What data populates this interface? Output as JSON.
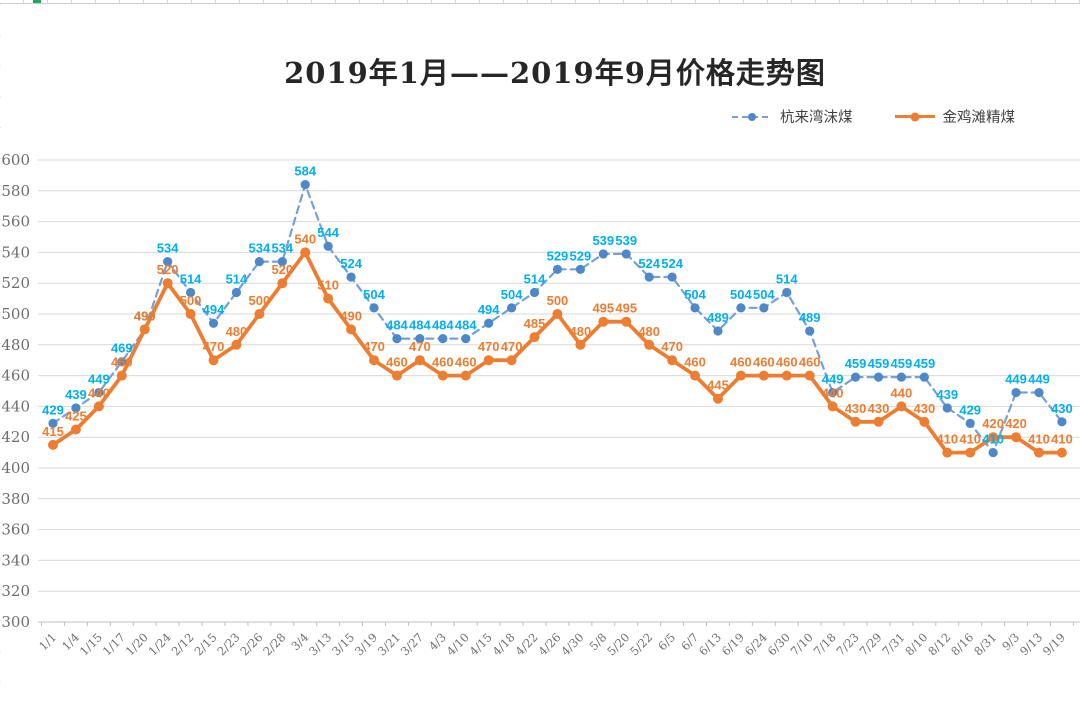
{
  "chart_data": {
    "type": "line",
    "title": "2019年1月——2019年9月价格走势图",
    "legend_position": "top-right",
    "grid": true,
    "data_labels": true,
    "categories": [
      "1/1",
      "1/4",
      "1/15",
      "1/17",
      "1/20",
      "1/24",
      "2/12",
      "2/15",
      "2/23",
      "2/26",
      "2/28",
      "3/4",
      "3/13",
      "3/15",
      "3/19",
      "3/21",
      "3/27",
      "4/3",
      "4/10",
      "4/15",
      "4/18",
      "4/22",
      "4/26",
      "4/30",
      "5/8",
      "5/20",
      "5/22",
      "6/5",
      "6/7",
      "6/13",
      "6/19",
      "6/24",
      "6/30",
      "7/10",
      "7/18",
      "7/23",
      "7/29",
      "7/31",
      "8/10",
      "8/12",
      "8/16",
      "8/31",
      "9/3",
      "9/13",
      "9/19"
    ],
    "series": [
      {
        "name": "杭来湾沫煤",
        "line_style": "dashed",
        "line_color": "#74A1D8",
        "marker_color": "#4E88C8",
        "label_color": "#00B0F0",
        "values": [
          429,
          439,
          449,
          469,
          490,
          534,
          514,
          494,
          514,
          534,
          534,
          584,
          544,
          524,
          504,
          484,
          484,
          484,
          484,
          494,
          504,
          514,
          529,
          529,
          539,
          539,
          524,
          524,
          504,
          489,
          504,
          504,
          514,
          489,
          449,
          459,
          459,
          459,
          459,
          439,
          429,
          410,
          449,
          449,
          430
        ]
      },
      {
        "name": "金鸡滩精煤",
        "line_style": "solid",
        "line_color": "#ED7D31",
        "marker_color": "#ED7D31",
        "label_color": "#ED7D31",
        "values": [
          415,
          425,
          440,
          460,
          490,
          520,
          500,
          470,
          480,
          500,
          520,
          540,
          510,
          490,
          470,
          460,
          470,
          460,
          460,
          470,
          470,
          485,
          500,
          480,
          495,
          495,
          480,
          470,
          460,
          445,
          460,
          460,
          460,
          460,
          440,
          430,
          430,
          440,
          430,
          410,
          410,
          420,
          420,
          410,
          410
        ]
      }
    ],
    "y_axis": {
      "min": 300,
      "max": 600,
      "step": 20,
      "ticks": [
        600,
        580,
        560,
        540,
        520,
        500,
        480,
        460,
        440,
        420,
        400,
        380,
        360,
        340,
        320,
        300
      ]
    },
    "colors": {
      "gridline": "#d9d9d9",
      "axis": "#bfbfbf",
      "tick_text": "#6e6e6e",
      "title_text": "#262626",
      "legend_text": "#404040",
      "background": "#ffffff"
    }
  }
}
